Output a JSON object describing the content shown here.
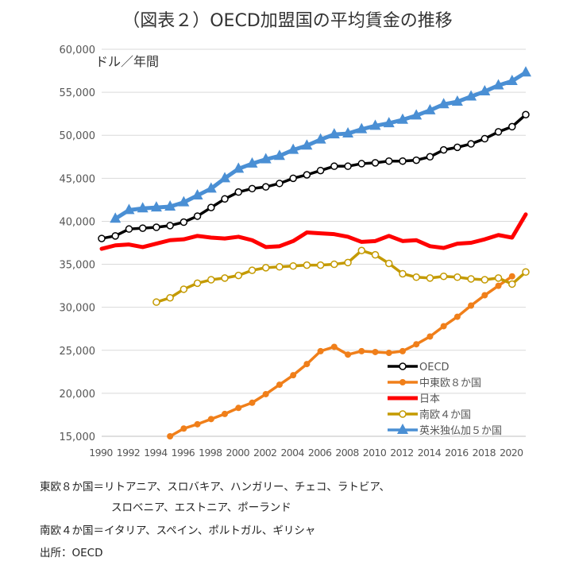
{
  "title": "（図表２）OECD加盟国の平均賃金の推移",
  "notes": {
    "east8": "東欧８か国＝リトアニア、スロバキア、ハンガリー、チェコ、ラトビア、",
    "east8_cont": "スロベニア、エストニア、ポーランド",
    "south4": "南欧４か国＝イタリア、スペイン、ポルトガル、ギリシャ",
    "source": "出所：OECD"
  },
  "chart_data": {
    "type": "line",
    "ylabel": "ドル／年間",
    "xlabel": "",
    "xlim": [
      1990,
      2021
    ],
    "ylim": [
      15000,
      60000
    ],
    "yticks": [
      15000,
      20000,
      25000,
      30000,
      35000,
      40000,
      45000,
      50000,
      55000,
      60000
    ],
    "ytick_labels": [
      "15,000",
      "20,000",
      "25,000",
      "30,000",
      "35,000",
      "40,000",
      "45,000",
      "50,000",
      "55,000",
      "60,000"
    ],
    "xticks": [
      1990,
      1992,
      1994,
      1996,
      1998,
      2000,
      2002,
      2004,
      2006,
      2008,
      2010,
      2012,
      2014,
      2016,
      2018,
      2020
    ],
    "xtick_labels": [
      "1990",
      "1992",
      "1994",
      "1996",
      "1998",
      "2000",
      "2002",
      "2004",
      "2006",
      "2008",
      "2010",
      "2012",
      "2014",
      "2016",
      "2018",
      "2020"
    ],
    "grid": "horizontal",
    "legend_position": "lower-right",
    "series": [
      {
        "name": "OECD",
        "color": "#000000",
        "marker": "open-circle",
        "x": [
          1990,
          1991,
          1992,
          1993,
          1994,
          1995,
          1996,
          1997,
          1998,
          1999,
          2000,
          2001,
          2002,
          2003,
          2004,
          2005,
          2006,
          2007,
          2008,
          2009,
          2010,
          2011,
          2012,
          2013,
          2014,
          2015,
          2016,
          2017,
          2018,
          2019,
          2020,
          2021
        ],
        "values": [
          38000,
          38300,
          39100,
          39200,
          39300,
          39500,
          39900,
          40600,
          41600,
          42600,
          43400,
          43800,
          44000,
          44400,
          45000,
          45400,
          45900,
          46400,
          46400,
          46700,
          46800,
          47000,
          47000,
          47100,
          47500,
          48300,
          48600,
          49000,
          49600,
          50400,
          51000,
          52400
        ]
      },
      {
        "name": "中東欧８か国",
        "color": "#f07f1a",
        "marker": "dot",
        "x": [
          1995,
          1996,
          1997,
          1998,
          1999,
          2000,
          2001,
          2002,
          2003,
          2004,
          2005,
          2006,
          2007,
          2008,
          2009,
          2010,
          2011,
          2012,
          2013,
          2014,
          2015,
          2016,
          2017,
          2018,
          2019,
          2020,
          2021
        ],
        "values": [
          15000,
          15900,
          16400,
          17000,
          17600,
          18300,
          18900,
          19900,
          21000,
          22100,
          23400,
          24900,
          25400,
          24500,
          24900,
          24800,
          24700,
          24900,
          25700,
          26600,
          27800,
          28900,
          30200,
          31400,
          32500,
          33600,
          null
        ]
      },
      {
        "name": "日本",
        "color": "#ff0000",
        "marker": "none",
        "x": [
          1990,
          1991,
          1992,
          1993,
          1994,
          1995,
          1996,
          1997,
          1998,
          1999,
          2000,
          2001,
          2002,
          2003,
          2004,
          2005,
          2006,
          2007,
          2008,
          2009,
          2010,
          2011,
          2012,
          2013,
          2014,
          2015,
          2016,
          2017,
          2018,
          2019,
          2020,
          2021
        ],
        "values": [
          36800,
          37200,
          37300,
          37000,
          37400,
          37800,
          37900,
          38300,
          38100,
          38000,
          38200,
          37800,
          37000,
          37100,
          37700,
          38700,
          38600,
          38500,
          38200,
          37600,
          37700,
          38300,
          37700,
          37800,
          37100,
          36900,
          37400,
          37500,
          37900,
          38400,
          38100,
          40800
        ]
      },
      {
        "name": "南欧４か国",
        "color": "#c49a00",
        "marker": "open-circle",
        "x": [
          1994,
          1995,
          1996,
          1997,
          1998,
          1999,
          2000,
          2001,
          2002,
          2003,
          2004,
          2005,
          2006,
          2007,
          2008,
          2009,
          2010,
          2011,
          2012,
          2013,
          2014,
          2015,
          2016,
          2017,
          2018,
          2019,
          2020,
          2021
        ],
        "values": [
          30600,
          31100,
          32100,
          32800,
          33200,
          33400,
          33700,
          34300,
          34600,
          34700,
          34800,
          34900,
          34900,
          35000,
          35200,
          36600,
          36100,
          35100,
          33900,
          33500,
          33400,
          33600,
          33500,
          33300,
          33200,
          33400,
          32700,
          34100
        ]
      },
      {
        "name": "英米独仏加５か国",
        "color": "#4a8fd4",
        "marker": "triangle",
        "x": [
          1990,
          1991,
          1992,
          1993,
          1994,
          1995,
          1996,
          1997,
          1998,
          1999,
          2000,
          2001,
          2002,
          2003,
          2004,
          2005,
          2006,
          2007,
          2008,
          2009,
          2010,
          2011,
          2012,
          2013,
          2014,
          2015,
          2016,
          2017,
          2018,
          2019,
          2020,
          2021
        ],
        "values": [
          null,
          40300,
          41300,
          41500,
          41600,
          41700,
          42200,
          43000,
          43800,
          45000,
          46100,
          46700,
          47200,
          47600,
          48300,
          48800,
          49500,
          50100,
          50200,
          50700,
          51100,
          51400,
          51800,
          52300,
          52900,
          53600,
          53900,
          54500,
          55100,
          55800,
          56300,
          57300
        ]
      }
    ]
  }
}
